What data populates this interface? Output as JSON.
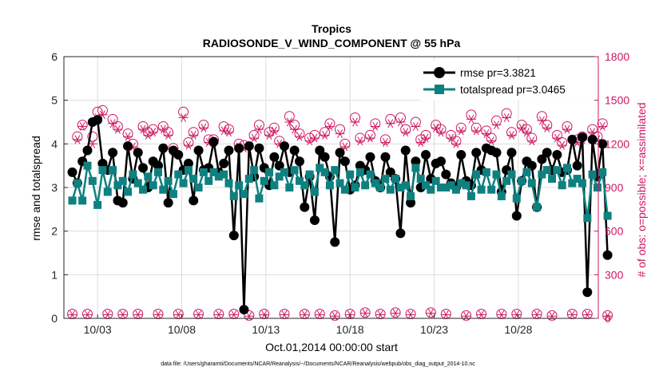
{
  "colors": {
    "rmse": "#000000",
    "totalspread": "#0f8080",
    "obs": "#cc1760",
    "grid": "#dddddd",
    "axis": "#262626"
  },
  "chart_data": {
    "type": "line",
    "title": "Tropics",
    "subtitle": "RADIOSONDE_V_WIND_COMPONENT @ 55 hPa",
    "xlabel": "Oct.01,2014 00:00:00 start",
    "ylabel_left": "rmse and totalspread",
    "ylabel_right": "# of obs: o=possible; ×=assimilated",
    "footnote": "data file: /Users/gharamti/Documents/NCAR/Reanalysis/~/Documents/NCAR/Reanalysis/webpub/obs_diag_output_2014-10.nc",
    "xlim": [
      1.0,
      32.75
    ],
    "ylim_left": [
      0,
      6
    ],
    "ylim_right": [
      0,
      1800
    ],
    "x_ticks": [
      3,
      8,
      13,
      18,
      23,
      28
    ],
    "x_tick_labels": [
      "10/03",
      "10/08",
      "10/13",
      "10/18",
      "10/23",
      "10/28"
    ],
    "y_left_ticks": [
      "0",
      "1",
      "2",
      "3",
      "4",
      "5",
      "6"
    ],
    "y_right_ticks": [
      "0",
      "300",
      "600",
      "900",
      "1200",
      "1500",
      "1800"
    ],
    "legend": [
      {
        "key": "rmse",
        "label": "rmse pr=3.3821"
      },
      {
        "key": "totalspread",
        "label": "totalspread pr=3.0465"
      }
    ],
    "legend_position": "top-right",
    "series": [
      {
        "name": "rmse",
        "axis": "left",
        "marker": "circle",
        "values": [
          3.35,
          3.1,
          3.6,
          3.85,
          4.5,
          4.55,
          3.55,
          3.4,
          3.8,
          2.7,
          2.65,
          3.95,
          3.2,
          3.8,
          3.45,
          3.0,
          3.6,
          3.5,
          3.9,
          2.65,
          3.85,
          3.75,
          3.4,
          3.55,
          2.7,
          3.85,
          3.4,
          3.45,
          4.05,
          3.35,
          3.55,
          3.85,
          1.9,
          3.9,
          0.2,
          3.95,
          3.25,
          3.9,
          3.45,
          3.05,
          3.7,
          3.5,
          3.95,
          3.35,
          3.85,
          3.6,
          2.55,
          3.25,
          2.25,
          3.85,
          3.7,
          3.25,
          1.75,
          3.8,
          3.6,
          2.95,
          3.05,
          3.5,
          3.4,
          3.7,
          3.15,
          3.0,
          3.7,
          3.35,
          3.2,
          1.95,
          3.85,
          2.65,
          3.6,
          3.0,
          3.75,
          3.2,
          3.55,
          3.6,
          3.3,
          3.1,
          3.0,
          3.75,
          3.15,
          3.05,
          3.8,
          3.4,
          3.9,
          3.85,
          3.8,
          2.9,
          3.4,
          3.8,
          2.35,
          3.15,
          3.6,
          3.5,
          2.55,
          3.65,
          3.8,
          3.4,
          3.75,
          3.35,
          3.4,
          4.1,
          3.5,
          4.15,
          0.6,
          4.1,
          3.25,
          4.0,
          1.45
        ]
      },
      {
        "name": "totalspread",
        "axis": "left",
        "marker": "square",
        "values": [
          2.7,
          3.1,
          2.7,
          3.5,
          3.15,
          2.6,
          3.4,
          2.9,
          3.4,
          3.05,
          3.15,
          2.9,
          3.3,
          3.1,
          2.95,
          3.25,
          3.05,
          3.35,
          2.95,
          3.15,
          2.85,
          3.3,
          3.1,
          3.4,
          3.2,
          3.0,
          3.35,
          3.15,
          3.35,
          3.25,
          3.3,
          3.1,
          2.8,
          3.05,
          2.85,
          3.2,
          3.4,
          2.75,
          3.15,
          3.35,
          3.05,
          3.25,
          3.35,
          3.0,
          3.4,
          3.15,
          3.05,
          3.3,
          2.9,
          3.45,
          3.35,
          3.05,
          3.4,
          3.1,
          2.95,
          3.3,
          3.0,
          3.35,
          3.05,
          3.3,
          3.1,
          3.0,
          3.2,
          2.95,
          3.2,
          3.0,
          3.05,
          2.8,
          3.45,
          3.2,
          3.05,
          2.95,
          3.15,
          3.0,
          3.0,
          3.05,
          2.95,
          3.1,
          3.05,
          2.8,
          3.3,
          2.95,
          3.35,
          2.95,
          3.3,
          2.8,
          3.15,
          3.3,
          2.75,
          3.15,
          3.35,
          3.1,
          2.55,
          3.3,
          3.4,
          3.2,
          3.4,
          3.05,
          3.45,
          3.1,
          3.2,
          3.1,
          2.3,
          3.3,
          3.0,
          3.35,
          2.35
        ]
      },
      {
        "name": "obs_possible",
        "axis": "right",
        "marker": "open-circle",
        "values": [
          30,
          1250,
          1330,
          30,
          1250,
          1420,
          1430,
          30,
          1370,
          1320,
          30,
          1270,
          1200,
          30,
          1320,
          1280,
          1300,
          30,
          1320,
          1280,
          1170,
          30,
          1420,
          1210,
          1280,
          30,
          1330,
          1230,
          1230,
          30,
          1320,
          1300,
          30,
          1200,
          1190,
          20,
          1260,
          1330,
          30,
          1280,
          1310,
          1220,
          30,
          1390,
          1330,
          1270,
          30,
          1240,
          1260,
          30,
          1280,
          1340,
          20,
          1300,
          1200,
          30,
          1380,
          1240,
          40,
          1260,
          1340,
          30,
          1230,
          1370,
          40,
          1380,
          1300,
          30,
          1350,
          1230,
          1260,
          40,
          1330,
          1300,
          30,
          1260,
          1220,
          1310,
          20,
          1400,
          1310,
          30,
          1290,
          1240,
          1360,
          30,
          1410,
          1280,
          30,
          1330,
          1300,
          1240,
          30,
          1390,
          1330,
          20,
          1260,
          1210,
          1320,
          30,
          1230,
          1250,
          30,
          1300,
          1250,
          1340,
          20
        ]
      },
      {
        "name": "obs_assimilated",
        "axis": "right",
        "marker": "asterisk",
        "values": [
          25,
          1230,
          1320,
          25,
          1200,
          1380,
          1400,
          25,
          1340,
          1300,
          25,
          1250,
          1180,
          25,
          1300,
          1260,
          1280,
          25,
          1300,
          1260,
          1150,
          25,
          1380,
          1190,
          1260,
          25,
          1310,
          1210,
          1210,
          25,
          1290,
          1280,
          25,
          1180,
          1170,
          15,
          1240,
          1300,
          25,
          1260,
          1290,
          1200,
          25,
          1350,
          1300,
          1250,
          25,
          1220,
          1240,
          25,
          1260,
          1320,
          15,
          1270,
          1180,
          25,
          1350,
          1220,
          35,
          1240,
          1320,
          25,
          1210,
          1340,
          35,
          1350,
          1280,
          25,
          1320,
          1210,
          1240,
          35,
          1310,
          1280,
          25,
          1240,
          1200,
          1290,
          15,
          1370,
          1290,
          25,
          1270,
          1220,
          1330,
          25,
          1380,
          1260,
          25,
          1310,
          1280,
          1220,
          25,
          1360,
          1310,
          15,
          1240,
          1190,
          1300,
          25,
          1210,
          1230,
          25,
          1280,
          1230,
          1320,
          15
        ]
      }
    ]
  }
}
